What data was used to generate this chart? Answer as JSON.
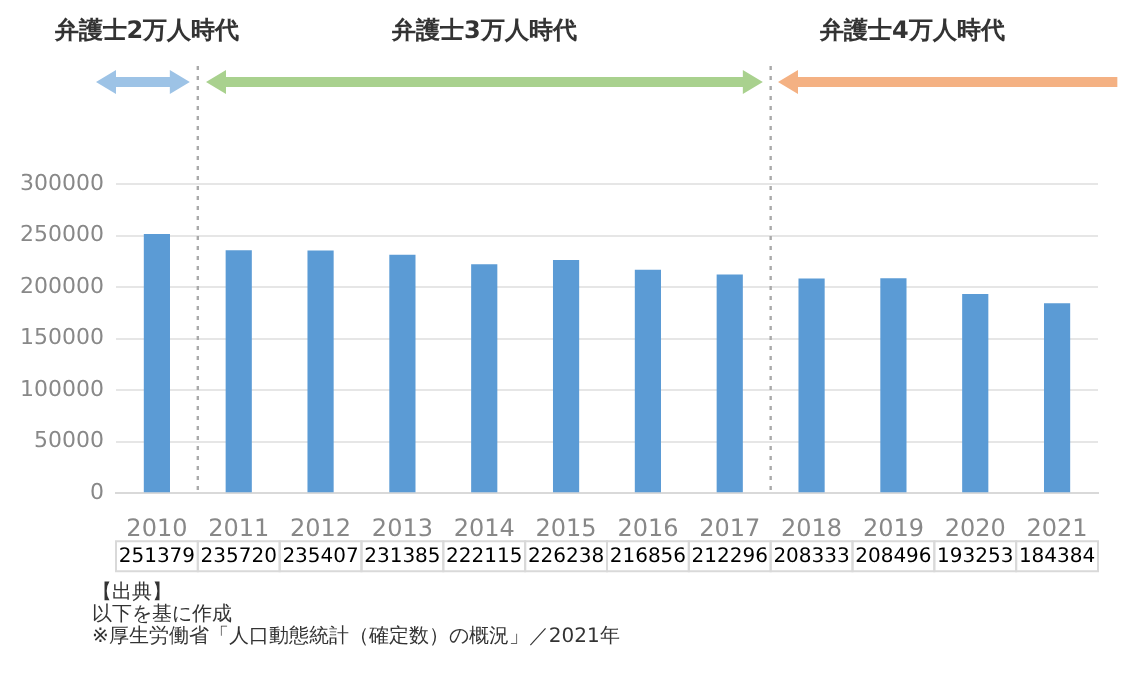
{
  "chart_data": {
    "type": "bar",
    "categories": [
      "2010",
      "2011",
      "2012",
      "2013",
      "2014",
      "2015",
      "2016",
      "2017",
      "2018",
      "2019",
      "2020",
      "2021"
    ],
    "values": [
      251379,
      235720,
      235407,
      231385,
      222115,
      226238,
      216856,
      212296,
      208333,
      208496,
      193253,
      184384
    ],
    "color": "#5b9bd5",
    "ylim": [
      0,
      300000
    ],
    "yticks": [
      0,
      50000,
      100000,
      150000,
      200000,
      250000,
      300000
    ],
    "grid": "y",
    "data_labels": true,
    "annotations": [
      "弁護士2万人時代",
      "弁護士3万人時代",
      "弁護士4万人時代",
      "【出典】",
      "以下を基に作成",
      "※厚生労働省「人口動態統計（確定数）の概況」／2021年"
    ]
  }
}
